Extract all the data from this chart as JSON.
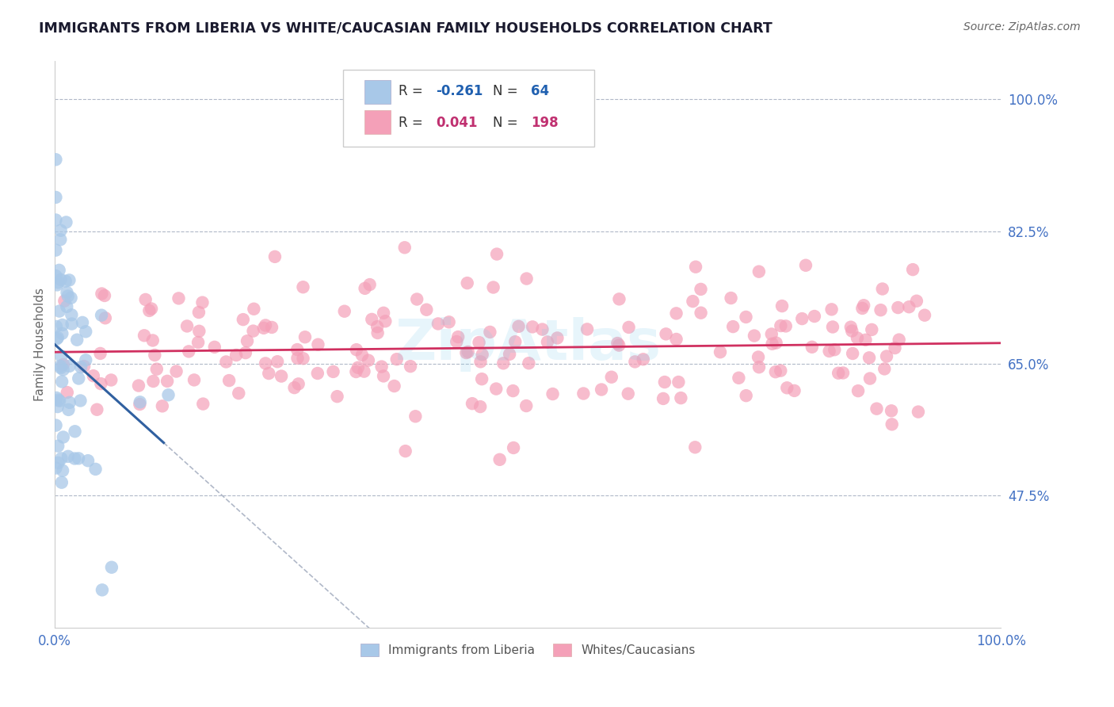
{
  "title": "IMMIGRANTS FROM LIBERIA VS WHITE/CAUCASIAN FAMILY HOUSEHOLDS CORRELATION CHART",
  "source": "Source: ZipAtlas.com",
  "ylabel": "Family Households",
  "xlim": [
    0.0,
    1.0
  ],
  "ylim": [
    0.3,
    1.05
  ],
  "yticks": [
    0.475,
    0.65,
    0.825,
    1.0
  ],
  "ytick_labels": [
    "47.5%",
    "65.0%",
    "82.5%",
    "100.0%"
  ],
  "blue_R": -0.261,
  "blue_N": 64,
  "pink_R": 0.041,
  "pink_N": 198,
  "blue_color": "#a8c8e8",
  "pink_color": "#f4a0b8",
  "blue_line_color": "#3060a0",
  "pink_line_color": "#d03060",
  "watermark": "ZipAtlas",
  "legend_label_blue": "Immigrants from Liberia",
  "legend_label_pink": "Whites/Caucasians",
  "background_color": "#ffffff",
  "grid_color": "#b0b8c8",
  "title_color": "#1a1a2e",
  "tick_color": "#4472c4",
  "ylabel_color": "#666666",
  "source_color": "#666666",
  "legend_R_color": "#222222",
  "legend_N_blue_color": "#2060b0",
  "legend_N_pink_color": "#c03070",
  "blue_trend_solid_end": 0.115,
  "blue_trend_dash_end": 0.58,
  "pink_trend_y_at_0": 0.665,
  "pink_trend_y_at_1": 0.677,
  "blue_trend_y_at_0": 0.675,
  "blue_trend_y_at_solid_end": 0.545
}
